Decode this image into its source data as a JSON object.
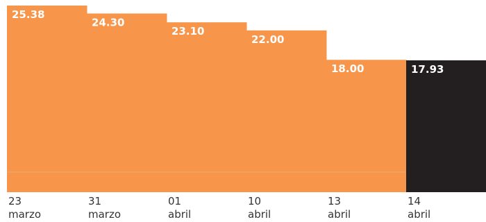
{
  "chart_data": {
    "type": "bar",
    "title": "",
    "xlabel": "",
    "ylabel": "",
    "ylim": [
      0,
      25.38
    ],
    "grid": false,
    "legend": "none",
    "categories": [
      {
        "day": "23",
        "month": "marzo"
      },
      {
        "day": "31",
        "month": "marzo"
      },
      {
        "day": "01",
        "month": "abril"
      },
      {
        "day": "10",
        "month": "abril"
      },
      {
        "day": "13",
        "month": "abril"
      },
      {
        "day": "14",
        "month": "abril"
      }
    ],
    "values": [
      25.38,
      24.3,
      23.1,
      22.0,
      18.0,
      17.93
    ],
    "data_labels": [
      "25.38",
      "24.30",
      "23.10",
      "22.00",
      "18.00",
      "17.93"
    ],
    "colors": [
      "#f7964a",
      "#f7964a",
      "#f7964a",
      "#f7964a",
      "#f7964a",
      "#231f20"
    ],
    "baseline_color": "#f0a060"
  }
}
